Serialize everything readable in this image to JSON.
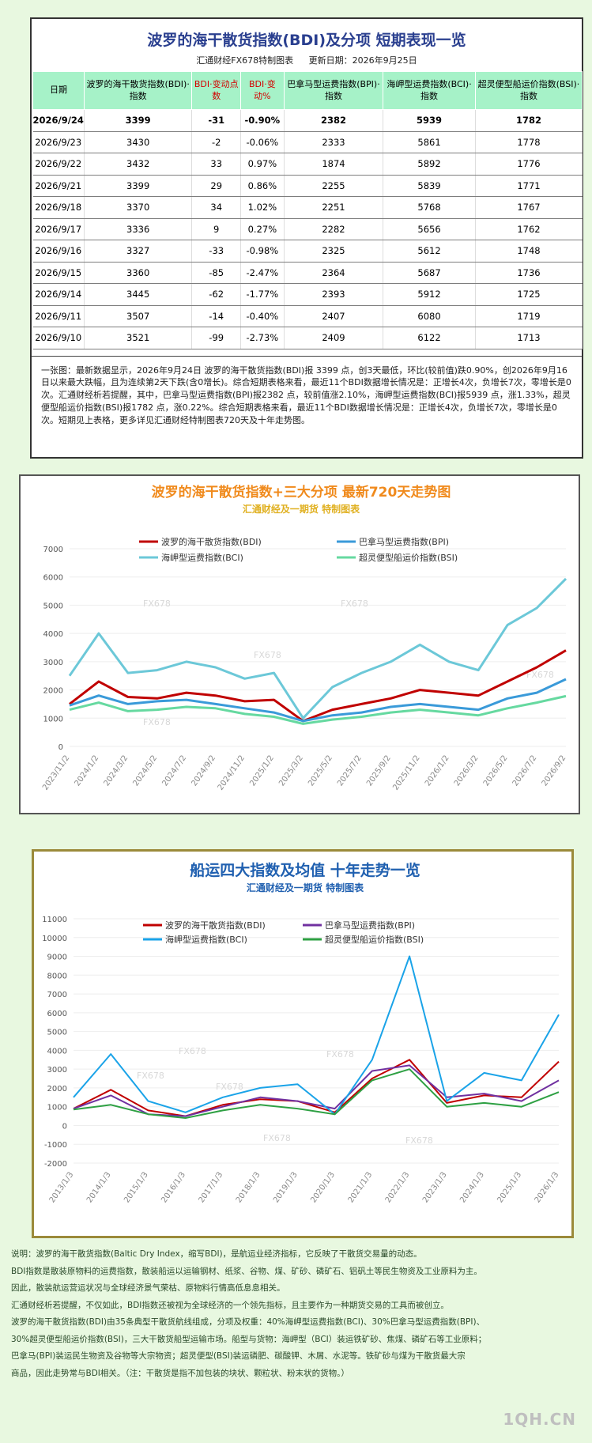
{
  "table_panel": {
    "title": "波罗的海干散货指数(BDI)及分项  短期表现一览",
    "publisher": "汇通财经FX678特制图表",
    "update_date": "更新日期：2026年9月25日",
    "headers": [
      "日期",
      "波罗的海干散货指数(BDI)·指数",
      "BDI·变动点数",
      "BDI·变动%",
      "巴拿马型运费指数(BPI)·指数",
      "海岬型运费指数(BCI)·指数",
      "超灵便型船运价指数(BSI)·指数"
    ],
    "rows": [
      [
        "2026/9/24",
        "3399",
        "-31",
        "-0.90%",
        "2382",
        "5939",
        "1782"
      ],
      [
        "2026/9/23",
        "3430",
        "-2",
        "-0.06%",
        "2333",
        "5861",
        "1778"
      ],
      [
        "2026/9/22",
        "3432",
        "33",
        "0.97%",
        "1874",
        "5892",
        "1776"
      ],
      [
        "2026/9/21",
        "3399",
        "29",
        "0.86%",
        "2255",
        "5839",
        "1771"
      ],
      [
        "2026/9/18",
        "3370",
        "34",
        "1.02%",
        "2251",
        "5768",
        "1767"
      ],
      [
        "2026/9/17",
        "3336",
        "9",
        "0.27%",
        "2282",
        "5656",
        "1762"
      ],
      [
        "2026/9/16",
        "3327",
        "-33",
        "-0.98%",
        "2325",
        "5612",
        "1748"
      ],
      [
        "2026/9/15",
        "3360",
        "-85",
        "-2.47%",
        "2364",
        "5687",
        "1736"
      ],
      [
        "2026/9/14",
        "3445",
        "-62",
        "-1.77%",
        "2393",
        "5912",
        "1725"
      ],
      [
        "2026/9/11",
        "3507",
        "-14",
        "-0.40%",
        "2407",
        "6080",
        "1719"
      ],
      [
        "2026/9/10",
        "3521",
        "-99",
        "-2.73%",
        "2409",
        "6122",
        "1713"
      ]
    ],
    "note": "一张图：最新数据显示，2026年9月24日 波罗的海干散货指数(BDI)报 3399 点，创3天最低，环比(较前值)跌0.90%，创2026年9月16日以来最大跌幅，且为连续第2天下跌(含0增长)。综合短期表格来看，最近11个BDI数据增长情况是：正增长4次，负增长7次，零增长是0次。汇通财经析若提醒，其中，巴拿马型运费指数(BPI)报2382 点，较前值涨2.10%，海岬型运费指数(BCI)报5939 点，涨1.33%，超灵便型船运价指数(BSI)报1782 点，涨0.22%。综合短期表格来看，最近11个BDI数据增长情况是：正增长4次，负增长7次，零增长是0次。短期见上表格，更多详见汇通财经特制图表720天及十年走势图。"
  },
  "chart_data": [
    {
      "type": "line",
      "title": "波罗的海干散货指数+三大分项  最新720天走势图",
      "subtitle": "汇通财经及一期货  特制图表",
      "watermark": "FX678",
      "ylim": [
        0,
        7000
      ],
      "yticks": [
        0,
        1000,
        2000,
        3000,
        4000,
        5000,
        6000,
        7000
      ],
      "x": [
        "2023/11/2",
        "2024/1/2",
        "2024/3/2",
        "2024/5/2",
        "2024/7/2",
        "2024/9/2",
        "2024/11/2",
        "2025/1/2",
        "2025/3/2",
        "2025/5/2",
        "2025/7/2",
        "2025/9/2",
        "2025/11/2",
        "2026/1/2",
        "2026/3/2",
        "2026/5/2",
        "2026/7/2",
        "2026/9/2"
      ],
      "series": [
        {
          "name": "波罗的海干散货指数(BDI)",
          "color": "#c00000",
          "values": [
            1500,
            2300,
            1750,
            1700,
            1900,
            1800,
            1600,
            1650,
            900,
            1300,
            1500,
            1700,
            2000,
            1900,
            1800,
            2300,
            2800,
            3400
          ]
        },
        {
          "name": "巴拿马型运费指数(BPI)",
          "color": "#3a9ad9",
          "values": [
            1450,
            1800,
            1500,
            1600,
            1650,
            1500,
            1350,
            1200,
            900,
            1100,
            1200,
            1400,
            1500,
            1400,
            1300,
            1700,
            1900,
            2380
          ]
        },
        {
          "name": "海岬型运费指数(BCI)",
          "color": "#6cc8d8",
          "values": [
            2500,
            4000,
            2600,
            2700,
            3000,
            2800,
            2400,
            2600,
            1000,
            2100,
            2600,
            3000,
            3600,
            3000,
            2700,
            4300,
            4900,
            5940
          ]
        },
        {
          "name": "超灵便型船运价指数(BSI)",
          "color": "#66d9a0",
          "values": [
            1300,
            1550,
            1250,
            1300,
            1400,
            1350,
            1150,
            1050,
            800,
            950,
            1050,
            1200,
            1300,
            1200,
            1100,
            1350,
            1550,
            1780
          ]
        }
      ]
    },
    {
      "type": "line",
      "title": "船运四大指数及均值 十年走势一览",
      "subtitle": "汇通财经及一期货 特制图表",
      "watermark": "FX678",
      "ylim": [
        -2000,
        11000
      ],
      "yticks": [
        -2000,
        -1000,
        0,
        1000,
        2000,
        3000,
        4000,
        5000,
        6000,
        7000,
        8000,
        9000,
        10000,
        11000
      ],
      "x": [
        "2013/1/3",
        "2014/1/3",
        "2015/1/3",
        "2016/1/3",
        "2017/1/3",
        "2018/1/3",
        "2019/1/3",
        "2020/1/3",
        "2021/1/3",
        "2022/1/3",
        "2023/1/3",
        "2024/1/3",
        "2025/1/3",
        "2026/1/3"
      ],
      "series": [
        {
          "name": "波罗的海干散货指数(BDI)",
          "color": "#c00000",
          "values": [
            900,
            1900,
            800,
            500,
            1100,
            1400,
            1300,
            700,
            2500,
            3500,
            1200,
            1600,
            1500,
            3400
          ]
        },
        {
          "name": "巴拿马型运费指数(BPI)",
          "color": "#7030a0",
          "values": [
            900,
            1600,
            600,
            500,
            1000,
            1500,
            1300,
            900,
            2900,
            3200,
            1500,
            1700,
            1300,
            2400
          ]
        },
        {
          "name": "海岬型运费指数(BCI)",
          "color": "#1aa3e8",
          "values": [
            1500,
            3800,
            1300,
            700,
            1500,
            2000,
            2200,
            600,
            3500,
            9000,
            1300,
            2800,
            2400,
            5900
          ]
        },
        {
          "name": "超灵便型船运价指数(BSI)",
          "color": "#2ea043",
          "values": [
            850,
            1100,
            600,
            400,
            800,
            1100,
            900,
            600,
            2400,
            3000,
            1000,
            1200,
            1000,
            1780
          ]
        }
      ]
    }
  ],
  "description": {
    "lines": [
      "说明：波罗的海干散货指数(Baltic Dry Index，缩写BDI)，是航运业经济指标，它反映了干散货交易量的动态。",
      "BDI指数是散装原物料的运费指数，散装船运以运输钢材、纸浆、谷物、煤、矿砂、磷矿石、铝矾土等民生物资及工业原料为主。",
      "因此，散装航运营运状况与全球经济景气荣枯、原物料行情高低息息相关。",
      "汇通财经析若提醒，不仅如此，BDI指数还被视为全球经济的一个领先指标，且主要作为一种期货交易的工具而被创立。",
      "波罗的海干散货指数(BDI)由35条典型干散货航线组成，分项及权重：40%海岬型运费指数(BCI)、30%巴拿马型运费指数(BPI)、",
      "30%超灵便型船运价指数(BSI)，三大干散货船型运输市场。船型与货物：海岬型（BCI）装运铁矿砂、焦煤、磷矿石等工业原料；",
      "巴拿马(BPI)装运民生物资及谷物等大宗物资；超灵便型(BSI)装运磷肥、碳酸钾、木屑、水泥等。铁矿砂与煤为干散货最大宗",
      "商品，因此走势常与BDI相关。（注：干散货是指不加包装的块状、颗粒状、粉末状的货物。）"
    ],
    "logo": "1QH.CN"
  }
}
